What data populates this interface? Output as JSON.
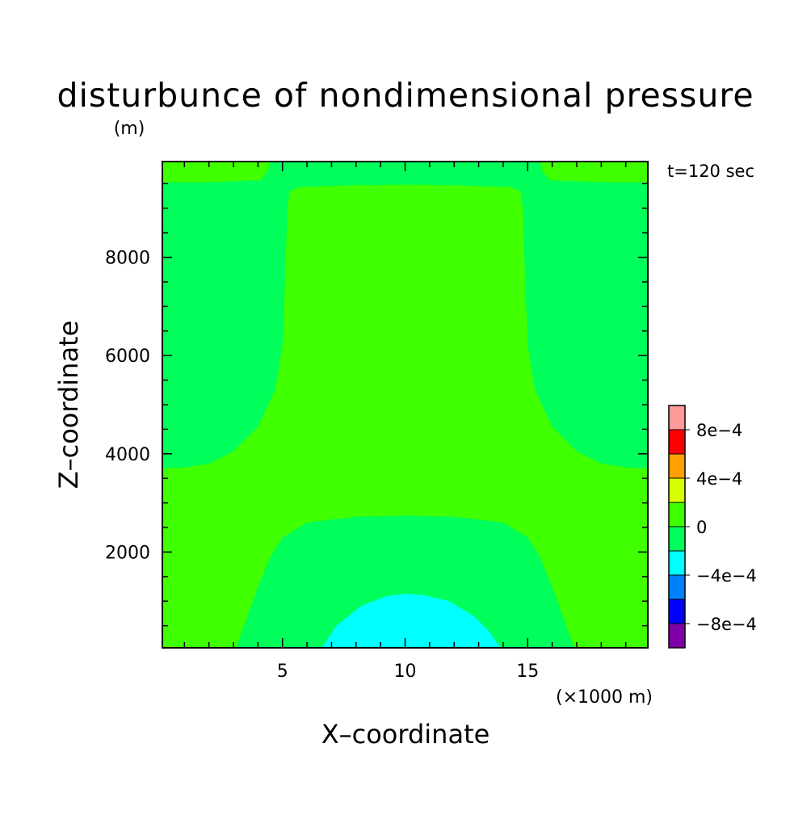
{
  "chart_data": {
    "type": "heatmap",
    "title": "disturbunce of nondimensional pressure",
    "y_unit_label": "(m)",
    "x_unit_label": "(×1000 m)",
    "xlabel": "X–coordinate",
    "ylabel": "Z–coordinate",
    "time_label": "t=120 sec",
    "xlim": [
      0.1,
      19.9
    ],
    "ylim": [
      50,
      9950
    ],
    "x_ticks": [
      {
        "value": 5,
        "label": "5"
      },
      {
        "value": 10,
        "label": "10"
      },
      {
        "value": 15,
        "label": "15"
      }
    ],
    "y_ticks": [
      {
        "value": 2000,
        "label": "2000"
      },
      {
        "value": 4000,
        "label": "4000"
      },
      {
        "value": 6000,
        "label": "6000"
      },
      {
        "value": 8000,
        "label": "8000"
      }
    ],
    "colorbar": {
      "levels": [
        -0.001,
        -0.0008,
        -0.0006,
        -0.0004,
        -0.0002,
        0,
        0.0002,
        0.0004,
        0.0006,
        0.0008,
        0.001
      ],
      "colors": [
        "#7f00a6",
        "#0000ff",
        "#0080ff",
        "#00ffff",
        "#00ff5a",
        "#40ff00",
        "#d8ff00",
        "#ffa000",
        "#ff0000",
        "#ff9a9a"
      ],
      "labels": [
        {
          "value": -0.0008,
          "label": "−8e−4"
        },
        {
          "value": -0.0004,
          "label": "−4e−4"
        },
        {
          "value": 0,
          "label": "0"
        },
        {
          "value": 0.0004,
          "label": "4e−4"
        },
        {
          "value": 0.0008,
          "label": "8e−4"
        }
      ]
    },
    "regions": [
      {
        "range": [
          -0.0002,
          0
        ],
        "color": "#00ff5a",
        "polygon": [
          [
            0.1,
            3700
          ],
          [
            1,
            3720
          ],
          [
            2,
            3800
          ],
          [
            3,
            4050
          ],
          [
            4,
            4550
          ],
          [
            4.7,
            5300
          ],
          [
            5,
            6200
          ],
          [
            5.1,
            7500
          ],
          [
            5.2,
            9000
          ],
          [
            5.3,
            9350
          ],
          [
            5.7,
            9430
          ],
          [
            8,
            9470
          ],
          [
            10,
            9480
          ],
          [
            12,
            9470
          ],
          [
            14.3,
            9430
          ],
          [
            14.7,
            9350
          ],
          [
            14.8,
            9000
          ],
          [
            14.9,
            7500
          ],
          [
            15,
            6200
          ],
          [
            15.3,
            5300
          ],
          [
            16,
            4550
          ],
          [
            17,
            4050
          ],
          [
            18,
            3800
          ],
          [
            19,
            3720
          ],
          [
            19.9,
            3700
          ],
          [
            19.9,
            9530
          ],
          [
            18,
            9530
          ],
          [
            15.9,
            9570
          ],
          [
            15.6,
            9750
          ],
          [
            15.5,
            9950
          ],
          [
            4.5,
            9950
          ],
          [
            4.4,
            9750
          ],
          [
            4.1,
            9570
          ],
          [
            2,
            9530
          ],
          [
            0.1,
            9530
          ]
        ]
      },
      {
        "range": [
          -0.0002,
          0
        ],
        "color": "#00ff5a",
        "polygon": [
          [
            3.1,
            50
          ],
          [
            3.5,
            600
          ],
          [
            4,
            1300
          ],
          [
            4.5,
            1900
          ],
          [
            5,
            2300
          ],
          [
            6,
            2600
          ],
          [
            8,
            2720
          ],
          [
            10,
            2740
          ],
          [
            12,
            2720
          ],
          [
            14,
            2600
          ],
          [
            15,
            2300
          ],
          [
            15.5,
            1900
          ],
          [
            16,
            1300
          ],
          [
            16.5,
            600
          ],
          [
            16.9,
            50
          ]
        ]
      },
      {
        "range": [
          -0.0004,
          -0.0002
        ],
        "color": "#00ffff",
        "polygon": [
          [
            6.6,
            50
          ],
          [
            7.2,
            500
          ],
          [
            8.2,
            900
          ],
          [
            9.2,
            1100
          ],
          [
            10,
            1150
          ],
          [
            10.8,
            1120
          ],
          [
            11.8,
            1000
          ],
          [
            12.8,
            700
          ],
          [
            13.4,
            400
          ],
          [
            13.9,
            50
          ]
        ]
      }
    ]
  }
}
